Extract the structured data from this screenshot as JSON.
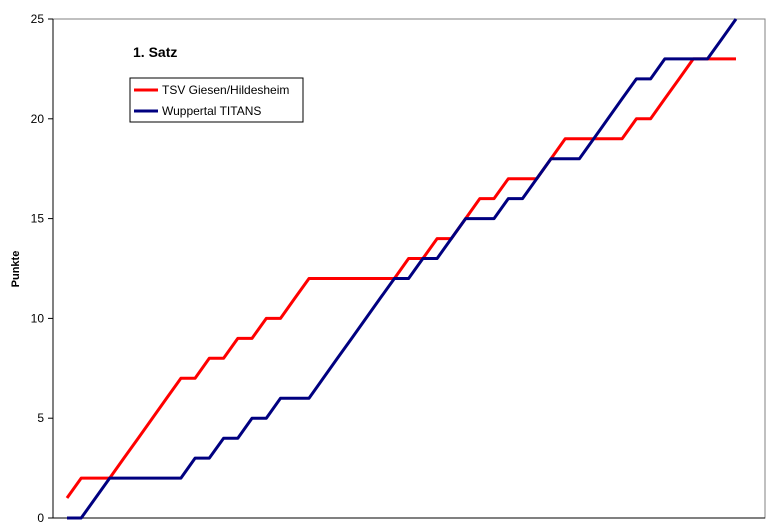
{
  "chart_data": {
    "type": "line",
    "title": "1. Satz",
    "ylabel": "Punkte",
    "xlabel": "",
    "ylim": [
      0,
      25
    ],
    "yticks": [
      0,
      5,
      10,
      15,
      20,
      25
    ],
    "grid": false,
    "legend": "top-left",
    "x": [
      0,
      1,
      2,
      3,
      4,
      5,
      6,
      7,
      8,
      9,
      10,
      11,
      12,
      13,
      14,
      15,
      16,
      17,
      18,
      19,
      20,
      21,
      22,
      23,
      24,
      25,
      26,
      27,
      28,
      29,
      30,
      31,
      32,
      33,
      34,
      35,
      36,
      37,
      38,
      39,
      40,
      41,
      42,
      43,
      44,
      45,
      46,
      47
    ],
    "series": [
      {
        "name": "TSV Giesen/Hildesheim",
        "color": "#ff0000",
        "values": [
          1,
          2,
          2,
          2,
          3,
          4,
          5,
          6,
          7,
          7,
          8,
          8,
          9,
          9,
          10,
          10,
          11,
          12,
          12,
          12,
          12,
          12,
          12,
          12,
          13,
          13,
          14,
          14,
          15,
          16,
          16,
          17,
          17,
          17,
          18,
          19,
          19,
          19,
          19,
          19,
          20,
          20,
          21,
          22,
          23,
          23,
          23,
          23
        ]
      },
      {
        "name": "Wuppertal TITANS",
        "color": "#000080",
        "values": [
          0,
          0,
          1,
          2,
          2,
          2,
          2,
          2,
          2,
          3,
          3,
          4,
          4,
          5,
          5,
          6,
          6,
          6,
          7,
          8,
          9,
          10,
          11,
          12,
          12,
          13,
          13,
          14,
          15,
          15,
          15,
          16,
          16,
          17,
          18,
          18,
          18,
          19,
          20,
          21,
          22,
          22,
          23,
          23,
          23,
          23,
          24,
          25
        ]
      }
    ]
  }
}
